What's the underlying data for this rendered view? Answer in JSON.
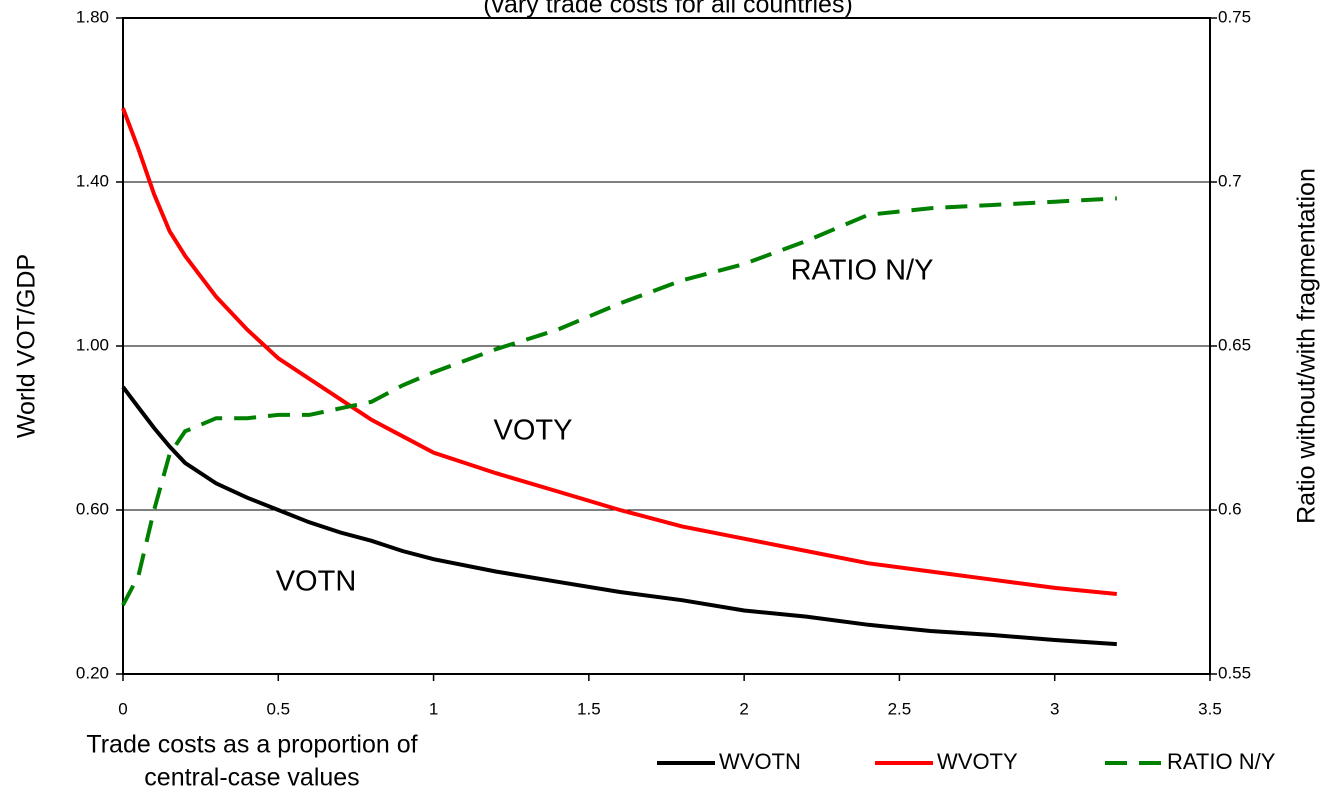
{
  "chart_data": {
    "type": "line",
    "title": "(vary trade costs for all countries)",
    "xlabel": [
      "Trade costs as a proportion of",
      "central-case values"
    ],
    "ylabel": "World VOT/GDP",
    "y2label": "Ratio without/with fragmentation",
    "x": [
      0,
      0.05,
      0.1,
      0.15,
      0.2,
      0.3,
      0.4,
      0.5,
      0.6,
      0.7,
      0.8,
      0.9,
      1.0,
      1.2,
      1.4,
      1.6,
      1.8,
      2.0,
      2.2,
      2.4,
      2.6,
      2.8,
      3.0,
      3.2
    ],
    "series": [
      {
        "name": "WVOTN",
        "color": "#000000",
        "dashed": false,
        "values": [
          0.9,
          0.85,
          0.8,
          0.755,
          0.715,
          0.665,
          0.63,
          0.6,
          0.57,
          0.545,
          0.525,
          0.5,
          0.48,
          0.45,
          0.425,
          0.4,
          0.38,
          0.355,
          0.34,
          0.32,
          0.305,
          0.295,
          0.283,
          0.273
        ]
      },
      {
        "name": "WVOTY",
        "color": "#ff0000",
        "dashed": false,
        "values": [
          1.58,
          1.48,
          1.37,
          1.28,
          1.22,
          1.12,
          1.04,
          0.97,
          0.92,
          0.87,
          0.82,
          0.78,
          0.74,
          0.69,
          0.645,
          0.6,
          0.56,
          0.53,
          0.5,
          0.47,
          0.45,
          0.43,
          0.41,
          0.395
        ]
      },
      {
        "name": "RATIO N/Y",
        "color": "#008000",
        "dashed": true,
        "axis": "y2",
        "values": [
          0.571,
          0.58,
          0.6,
          0.617,
          0.624,
          0.628,
          0.628,
          0.629,
          0.629,
          0.631,
          0.633,
          0.638,
          0.642,
          0.649,
          0.655,
          0.663,
          0.67,
          0.675,
          0.682,
          0.69,
          0.692,
          0.693,
          0.694,
          0.695
        ]
      }
    ],
    "annotations": [
      "RATIO N/Y",
      "VOTY",
      "VOTN"
    ],
    "xlim": [
      0,
      3.5
    ],
    "xticks": [
      0,
      0.5,
      1,
      1.5,
      2,
      2.5,
      3,
      3.5
    ],
    "ylim": [
      0.2,
      1.8
    ],
    "yticks": [
      {
        "value": 0.2,
        "label": "0.20"
      },
      {
        "value": 0.6,
        "label": "0.60"
      },
      {
        "value": 1.0,
        "label": "1.00"
      },
      {
        "value": 1.4,
        "label": "1.40"
      },
      {
        "value": 1.8,
        "label": "1.80"
      }
    ],
    "y2lim": [
      0.55,
      0.75
    ],
    "y2ticks": [
      0.55,
      0.6,
      0.65,
      0.7,
      0.75
    ],
    "grid": true,
    "legend": "bottom-right"
  }
}
